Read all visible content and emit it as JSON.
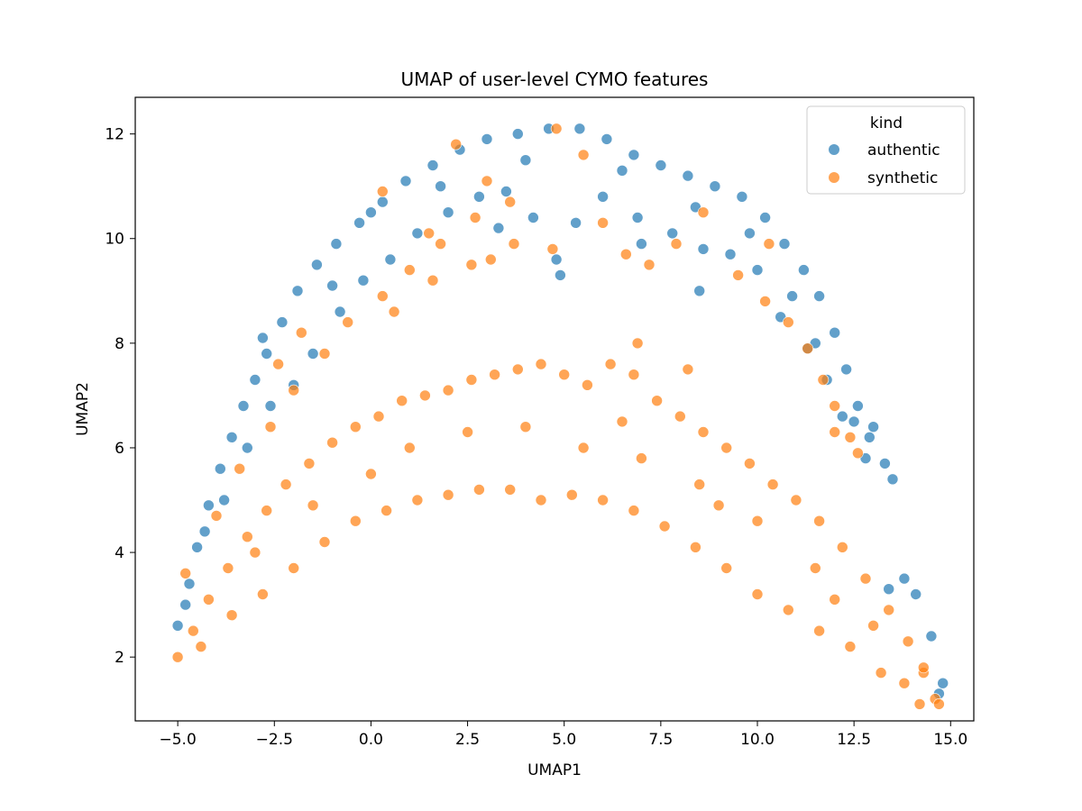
{
  "chart_data": {
    "type": "scatter",
    "title": "UMAP of user-level CYMO features",
    "xlabel": "UMAP1",
    "ylabel": "UMAP2",
    "xlim": [
      -6.1,
      15.6
    ],
    "ylim": [
      0.78,
      12.7
    ],
    "xticks": [
      -5.0,
      -2.5,
      0.0,
      2.5,
      5.0,
      7.5,
      10.0,
      12.5,
      15.0
    ],
    "xtick_labels": [
      "−5.0",
      "−2.5",
      "0.0",
      "2.5",
      "5.0",
      "7.5",
      "10.0",
      "12.5",
      "15.0"
    ],
    "yticks": [
      2,
      4,
      6,
      8,
      10,
      12
    ],
    "ytick_labels": [
      "2",
      "4",
      "6",
      "8",
      "10",
      "12"
    ],
    "grid": false,
    "legend": {
      "title": "kind",
      "placement": "top-right"
    },
    "series": [
      {
        "name": "authentic",
        "color": "#1f77b4",
        "points": [
          [
            -5.0,
            2.6
          ],
          [
            -4.7,
            3.4
          ],
          [
            -4.5,
            4.1
          ],
          [
            -4.2,
            4.9
          ],
          [
            -3.9,
            5.6
          ],
          [
            -3.6,
            6.2
          ],
          [
            -3.3,
            6.8
          ],
          [
            -3.0,
            7.3
          ],
          [
            -2.7,
            7.8
          ],
          [
            -2.3,
            8.4
          ],
          [
            -1.9,
            9.0
          ],
          [
            -1.4,
            9.5
          ],
          [
            -0.9,
            9.9
          ],
          [
            -0.3,
            10.3
          ],
          [
            0.3,
            10.7
          ],
          [
            0.9,
            11.1
          ],
          [
            1.6,
            11.4
          ],
          [
            2.3,
            11.7
          ],
          [
            3.0,
            11.9
          ],
          [
            3.8,
            12.0
          ],
          [
            4.6,
            12.1
          ],
          [
            5.4,
            12.1
          ],
          [
            6.1,
            11.9
          ],
          [
            6.8,
            11.6
          ],
          [
            7.5,
            11.4
          ],
          [
            8.2,
            11.2
          ],
          [
            8.9,
            11.0
          ],
          [
            9.6,
            10.8
          ],
          [
            10.2,
            10.4
          ],
          [
            10.7,
            9.9
          ],
          [
            11.2,
            9.4
          ],
          [
            11.6,
            8.9
          ],
          [
            12.0,
            8.2
          ],
          [
            12.3,
            7.5
          ],
          [
            12.6,
            6.8
          ],
          [
            12.9,
            6.2
          ],
          [
            13.3,
            5.7
          ],
          [
            13.5,
            5.4
          ],
          [
            -2.0,
            7.2
          ],
          [
            -1.5,
            7.8
          ],
          [
            -0.8,
            8.6
          ],
          [
            -0.2,
            9.2
          ],
          [
            0.5,
            9.6
          ],
          [
            1.2,
            10.1
          ],
          [
            2.0,
            10.5
          ],
          [
            2.8,
            10.8
          ],
          [
            3.5,
            10.9
          ],
          [
            4.2,
            10.4
          ],
          [
            4.8,
            9.6
          ],
          [
            5.3,
            10.3
          ],
          [
            6.0,
            10.8
          ],
          [
            6.9,
            10.4
          ],
          [
            7.8,
            10.1
          ],
          [
            8.6,
            9.8
          ],
          [
            9.3,
            9.7
          ],
          [
            10.0,
            9.4
          ],
          [
            10.6,
            8.5
          ],
          [
            11.3,
            7.9
          ],
          [
            11.8,
            7.3
          ],
          [
            12.2,
            6.6
          ],
          [
            -3.8,
            5.0
          ],
          [
            -3.2,
            6.0
          ],
          [
            -2.6,
            6.8
          ],
          [
            1.8,
            11.0
          ],
          [
            4.0,
            11.5
          ],
          [
            6.5,
            11.3
          ],
          [
            8.4,
            10.6
          ],
          [
            10.9,
            8.9
          ],
          [
            8.5,
            9.0
          ],
          [
            4.9,
            9.3
          ],
          [
            12.5,
            6.5
          ],
          [
            12.8,
            5.8
          ],
          [
            13.0,
            6.4
          ],
          [
            -2.8,
            8.1
          ],
          [
            13.4,
            3.3
          ],
          [
            13.8,
            3.5
          ],
          [
            14.1,
            3.2
          ],
          [
            14.5,
            2.4
          ],
          [
            14.8,
            1.5
          ],
          [
            14.7,
            1.3
          ],
          [
            3.3,
            10.2
          ],
          [
            7.0,
            9.9
          ],
          [
            9.8,
            10.1
          ],
          [
            -1.0,
            9.1
          ],
          [
            0.0,
            10.5
          ],
          [
            11.5,
            8.0
          ],
          [
            -4.3,
            4.4
          ],
          [
            -4.8,
            3.0
          ]
        ]
      },
      {
        "name": "synthetic",
        "color": "#ff7f0e",
        "points": [
          [
            -5.0,
            2.0
          ],
          [
            -4.6,
            2.5
          ],
          [
            -4.2,
            3.1
          ],
          [
            -3.7,
            3.7
          ],
          [
            -3.2,
            4.3
          ],
          [
            -2.7,
            4.8
          ],
          [
            -2.2,
            5.3
          ],
          [
            -1.6,
            5.7
          ],
          [
            -1.0,
            6.1
          ],
          [
            -0.4,
            6.4
          ],
          [
            0.2,
            6.6
          ],
          [
            0.8,
            6.9
          ],
          [
            1.4,
            7.0
          ],
          [
            2.0,
            7.1
          ],
          [
            2.6,
            7.3
          ],
          [
            3.2,
            7.4
          ],
          [
            3.8,
            7.5
          ],
          [
            4.4,
            7.6
          ],
          [
            5.0,
            7.4
          ],
          [
            5.6,
            7.2
          ],
          [
            6.2,
            7.6
          ],
          [
            6.8,
            7.4
          ],
          [
            7.4,
            6.9
          ],
          [
            8.0,
            6.6
          ],
          [
            8.6,
            6.3
          ],
          [
            9.2,
            6.0
          ],
          [
            9.8,
            5.7
          ],
          [
            10.4,
            5.3
          ],
          [
            11.0,
            5.0
          ],
          [
            11.6,
            4.6
          ],
          [
            12.2,
            4.1
          ],
          [
            12.8,
            3.5
          ],
          [
            13.4,
            2.9
          ],
          [
            13.9,
            2.3
          ],
          [
            14.3,
            1.7
          ],
          [
            14.6,
            1.2
          ],
          [
            14.2,
            1.1
          ],
          [
            -4.4,
            2.2
          ],
          [
            -3.6,
            2.8
          ],
          [
            -2.8,
            3.2
          ],
          [
            -2.0,
            3.7
          ],
          [
            -1.2,
            4.2
          ],
          [
            -0.4,
            4.6
          ],
          [
            0.4,
            4.8
          ],
          [
            1.2,
            5.0
          ],
          [
            2.0,
            5.1
          ],
          [
            2.8,
            5.2
          ],
          [
            3.6,
            5.2
          ],
          [
            4.4,
            5.0
          ],
          [
            5.2,
            5.1
          ],
          [
            6.0,
            5.0
          ],
          [
            6.8,
            4.8
          ],
          [
            7.6,
            4.5
          ],
          [
            8.4,
            4.1
          ],
          [
            9.2,
            3.7
          ],
          [
            10.0,
            3.2
          ],
          [
            10.8,
            2.9
          ],
          [
            11.6,
            2.5
          ],
          [
            12.4,
            2.2
          ],
          [
            13.2,
            1.7
          ],
          [
            13.8,
            1.5
          ],
          [
            1.0,
            6.0
          ],
          [
            2.5,
            6.3
          ],
          [
            4.0,
            6.4
          ],
          [
            5.5,
            6.0
          ],
          [
            7.0,
            5.8
          ],
          [
            8.5,
            5.3
          ],
          [
            10.0,
            4.6
          ],
          [
            11.5,
            3.7
          ],
          [
            13.0,
            2.6
          ],
          [
            0.0,
            5.5
          ],
          [
            -1.5,
            4.9
          ],
          [
            -3.0,
            4.0
          ],
          [
            6.5,
            6.5
          ],
          [
            9.0,
            4.9
          ],
          [
            12.0,
            3.1
          ],
          [
            -4.8,
            3.6
          ],
          [
            -4.0,
            4.7
          ],
          [
            -3.4,
            5.6
          ],
          [
            -2.6,
            6.4
          ],
          [
            -2.0,
            7.1
          ],
          [
            -1.2,
            7.8
          ],
          [
            -0.6,
            8.4
          ],
          [
            0.3,
            8.9
          ],
          [
            1.0,
            9.4
          ],
          [
            1.8,
            9.9
          ],
          [
            2.7,
            10.4
          ],
          [
            3.6,
            10.7
          ],
          [
            4.8,
            12.1
          ],
          [
            5.5,
            11.6
          ],
          [
            6.0,
            10.3
          ],
          [
            7.2,
            9.5
          ],
          [
            7.9,
            9.9
          ],
          [
            8.6,
            10.5
          ],
          [
            9.5,
            9.3
          ],
          [
            10.2,
            8.8
          ],
          [
            10.8,
            8.4
          ],
          [
            11.3,
            7.9
          ],
          [
            11.7,
            7.3
          ],
          [
            12.0,
            6.8
          ],
          [
            12.4,
            6.2
          ],
          [
            6.6,
            9.7
          ],
          [
            4.7,
            9.8
          ],
          [
            3.1,
            9.6
          ],
          [
            1.6,
            9.2
          ],
          [
            0.6,
            8.6
          ],
          [
            0.3,
            10.9
          ],
          [
            1.5,
            10.1
          ],
          [
            2.2,
            11.8
          ],
          [
            3.0,
            11.1
          ],
          [
            3.7,
            9.9
          ],
          [
            2.6,
            9.5
          ],
          [
            6.9,
            8.0
          ],
          [
            -1.8,
            8.2
          ],
          [
            -2.4,
            7.6
          ],
          [
            10.3,
            9.9
          ],
          [
            12.0,
            6.3
          ],
          [
            12.6,
            5.9
          ],
          [
            8.2,
            7.5
          ],
          [
            14.7,
            1.1
          ],
          [
            14.3,
            1.8
          ]
        ]
      }
    ]
  }
}
